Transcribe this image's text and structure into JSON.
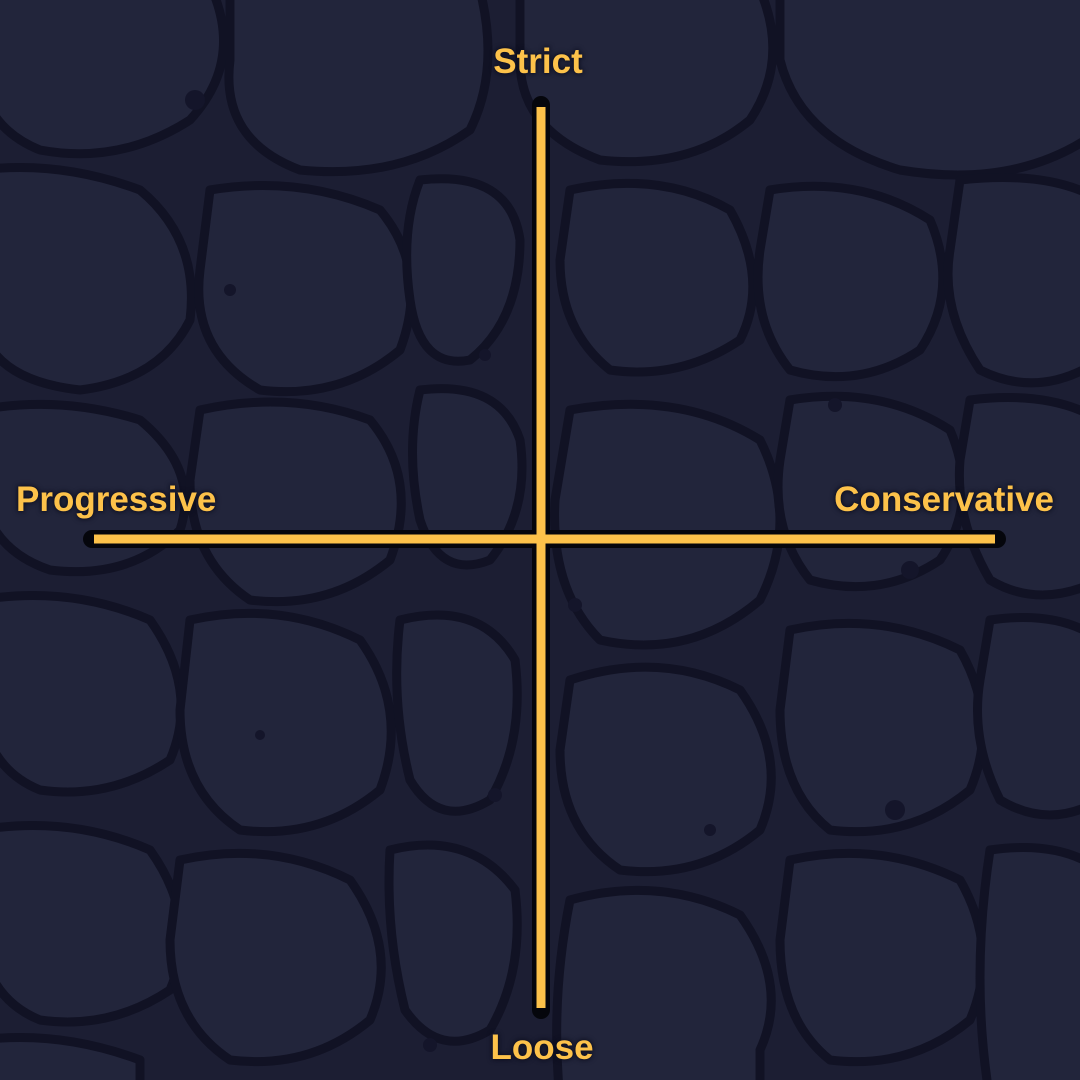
{
  "axes": {
    "top_label": "Strict",
    "bottom_label": "Loose",
    "left_label": "Progressive",
    "right_label": "Conservative"
  },
  "colors": {
    "background": "#1c1e33",
    "stone_line": "#111224",
    "stone_fill": "#22253b",
    "axis_line": "#fdc24a",
    "axis_outline": "#05060c",
    "label_text": "#fdc24a"
  }
}
